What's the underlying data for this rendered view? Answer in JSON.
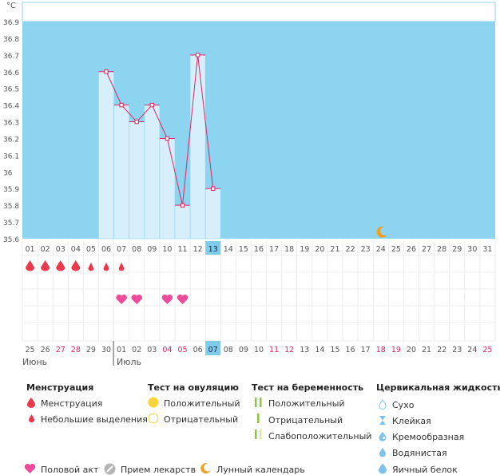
{
  "chart_data": {
    "type": "bar",
    "unit": "°C",
    "y_ticks": [
      "36.9",
      "36.8",
      "36.7",
      "36.6",
      "36.5",
      "36.4",
      "36.3",
      "36.2",
      "36.1",
      "36",
      "35.9",
      "35.8",
      "35.7",
      "35.6"
    ],
    "ylim": [
      35.6,
      36.9
    ],
    "cycle_days": [
      "01",
      "02",
      "03",
      "04",
      "05",
      "06",
      "07",
      "08",
      "09",
      "10",
      "11",
      "12",
      "13",
      "14",
      "15",
      "16",
      "17",
      "18",
      "19",
      "20",
      "21",
      "22",
      "23",
      "24",
      "25",
      "26",
      "27",
      "28",
      "29",
      "30",
      "31"
    ],
    "temperatures": [
      null,
      null,
      null,
      null,
      null,
      36.6,
      36.4,
      36.3,
      36.4,
      36.2,
      35.8,
      36.7,
      35.9,
      null,
      null,
      null,
      null,
      null,
      null,
      null,
      null,
      null,
      null,
      null,
      null,
      null,
      null,
      null,
      null,
      null,
      null
    ],
    "current_day_index": 12,
    "menstruation": [
      "large",
      "large",
      "large",
      "large",
      "small",
      "small",
      "small",
      null,
      null,
      null,
      null,
      null,
      null,
      null,
      null,
      null,
      null,
      null,
      null,
      null,
      null,
      null,
      null,
      null,
      null,
      null,
      null,
      null,
      null,
      null,
      null
    ],
    "intercourse": [
      null,
      null,
      null,
      null,
      null,
      null,
      "heart",
      "heart",
      null,
      "heart",
      "heart",
      null,
      null,
      null,
      null,
      null,
      null,
      null,
      null,
      null,
      null,
      null,
      null,
      null,
      null,
      null,
      null,
      null,
      null,
      null,
      null
    ],
    "moon_day_index": 23,
    "calendar_dates": [
      "25",
      "26",
      "27",
      "28",
      "29",
      "30",
      "01",
      "02",
      "03",
      "04",
      "05",
      "06",
      "07",
      "08",
      "09",
      "10",
      "11",
      "12",
      "13",
      "14",
      "15",
      "16",
      "17",
      "18",
      "19",
      "20",
      "21",
      "22",
      "23",
      "24",
      "25"
    ],
    "weekend_flags": [
      0,
      0,
      1,
      1,
      0,
      0,
      0,
      0,
      0,
      1,
      1,
      0,
      0,
      0,
      0,
      0,
      1,
      1,
      0,
      0,
      0,
      0,
      0,
      1,
      1,
      0,
      0,
      0,
      0,
      0,
      1
    ],
    "months": [
      {
        "label": "Июнь",
        "start_index": 0
      },
      {
        "label": "Июль",
        "start_index": 6
      }
    ],
    "colors": {
      "sky": "#8dd4f0",
      "bar": "#d7effb",
      "bar_border": "#8dd4f0",
      "line": "#e0245e",
      "today": "#7fcbea",
      "weekend": "#e0245e",
      "drop": "#e83a4c",
      "heart": "#ee4b9b",
      "moon": "#f0a020",
      "ovul_pos": "#f7d33c",
      "ovul_neg": "#f7d33c",
      "preg_pos": "#8cc63f",
      "preg_weak": "#d7ea9f",
      "cervical": "#7fc2ea"
    }
  },
  "legend": {
    "menstruation": {
      "title": "Менструация",
      "items": [
        "Менструация",
        "Небольшие выделения"
      ]
    },
    "ovulation": {
      "title": "Тест на овуляцию",
      "items": [
        "Положительный",
        "Отрицательный"
      ]
    },
    "pregnancy": {
      "title": "Тест на беременность",
      "items": [
        "Положительный",
        "Отрицательный",
        "Слабоположительный"
      ]
    },
    "cervical": {
      "title": "Цервикальная жидкость",
      "items": [
        "Сухо",
        "Клейкая",
        "Кремообразная",
        "Водянистая",
        "Яичный белок"
      ]
    },
    "bottom": [
      "Половой акт",
      "Прием лекарств",
      "Лунный календарь"
    ]
  }
}
